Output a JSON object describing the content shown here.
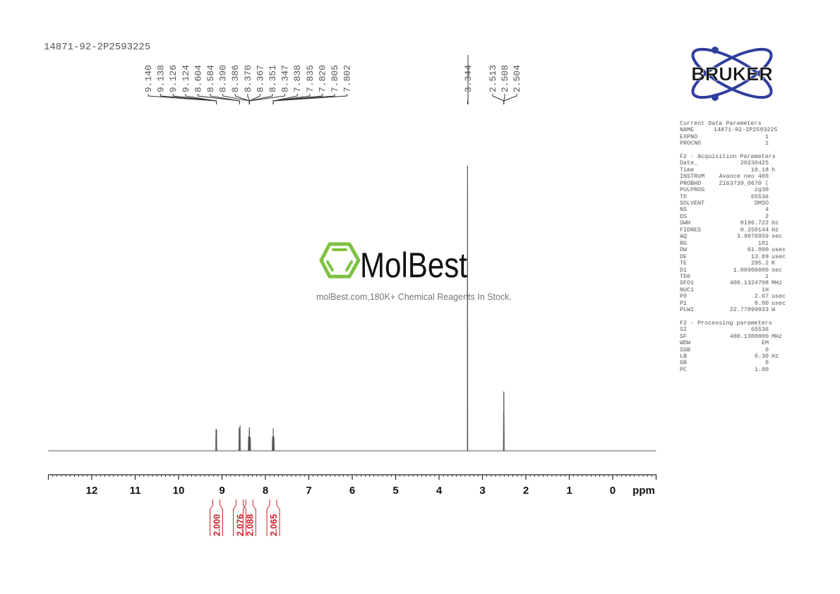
{
  "title": "14871-92-2P2593225",
  "watermark": {
    "brand": "MolBest",
    "tagline": "molBest.com,180K+ Chemical Reagents In Stock.",
    "color": "#7dc242"
  },
  "logo": {
    "brand": "BRUKER",
    "color": "#2f3f9e"
  },
  "chart_data": {
    "type": "line",
    "xlabel": "ppm",
    "xlim": [
      13,
      -1
    ],
    "x_reversed": true,
    "x_ticks": [
      "12",
      "11",
      "10",
      "9",
      "8",
      "7",
      "6",
      "5",
      "4",
      "3",
      "2",
      "1",
      "0"
    ],
    "grid": false,
    "line_color": "#555555",
    "signals": [
      {
        "ppm": 9.14,
        "intensity": 4.5
      },
      {
        "ppm": 9.138,
        "intensity": 7.7
      },
      {
        "ppm": 9.126,
        "intensity": 7.5
      },
      {
        "ppm": 9.124,
        "intensity": 4.4
      },
      {
        "ppm": 8.604,
        "intensity": 8.0
      },
      {
        "ppm": 8.584,
        "intensity": 8.9
      },
      {
        "ppm": 8.39,
        "intensity": 4.5
      },
      {
        "ppm": 8.386,
        "intensity": 5.0
      },
      {
        "ppm": 8.37,
        "intensity": 8.2
      },
      {
        "ppm": 8.367,
        "intensity": 7.0
      },
      {
        "ppm": 8.351,
        "intensity": 4.8
      },
      {
        "ppm": 8.347,
        "intensity": 4.3
      },
      {
        "ppm": 7.838,
        "intensity": 4.2
      },
      {
        "ppm": 7.835,
        "intensity": 5.0
      },
      {
        "ppm": 7.82,
        "intensity": 7.9
      },
      {
        "ppm": 7.805,
        "intensity": 5.0
      },
      {
        "ppm": 7.802,
        "intensity": 4.2
      },
      {
        "ppm": 3.344,
        "intensity": 100
      },
      {
        "ppm": 2.513,
        "intensity": 14
      },
      {
        "ppm": 2.508,
        "intensity": 20.8
      },
      {
        "ppm": 2.504,
        "intensity": 14
      }
    ],
    "peak_labels": {
      "groups": [
        {
          "labels": [
            "9.140",
            "9.138",
            "9.126",
            "9.124"
          ],
          "ppm": 9.13
        },
        {
          "labels": [
            "8.604",
            "8.584"
          ],
          "ppm": 8.594
        },
        {
          "labels": [
            "8.390",
            "8.386",
            "8.370",
            "8.367",
            "8.351",
            "8.347"
          ],
          "ppm": 8.368
        },
        {
          "labels": [
            "7.838",
            "7.835",
            "7.820",
            "7.805",
            "7.802"
          ],
          "ppm": 7.82
        },
        {
          "labels": [
            "3.344"
          ],
          "ppm": 3.344
        },
        {
          "labels": [
            "2.513",
            "2.508",
            "2.504"
          ],
          "ppm": 2.508
        }
      ]
    },
    "integrals": [
      {
        "ppm": 9.13,
        "value": "2.000"
      },
      {
        "ppm": 8.594,
        "value": "2.076"
      },
      {
        "ppm": 8.368,
        "value": "2.088"
      },
      {
        "ppm": 7.82,
        "value": "2.065"
      }
    ],
    "integral_color": "#d0202a"
  },
  "parameters": [
    {
      "heading": "Current Data Parameters",
      "rows": [
        [
          "NAME",
          "14871-92-2P2593225",
          ""
        ],
        [
          "EXPNO",
          "1",
          ""
        ],
        [
          "PROCNO",
          "1",
          ""
        ]
      ]
    },
    {
      "heading": "F2 - Acquisition Parameters",
      "rows": [
        [
          "Date_",
          "20230425",
          ""
        ],
        [
          "Time",
          "10.18",
          "h"
        ],
        [
          "INSTRUM",
          "Avance neo 400",
          ""
        ],
        [
          "PROBHD",
          "Z163739_0670 (",
          ""
        ],
        [
          "PULPROG",
          "zg30",
          ""
        ],
        [
          "TD",
          "65536",
          ""
        ],
        [
          "SOLVENT",
          "DMSO",
          ""
        ],
        [
          "NS",
          "4",
          ""
        ],
        [
          "DS",
          "2",
          ""
        ],
        [
          "SWH",
          "8196.722",
          "Hz"
        ],
        [
          "FIDRES",
          "0.250144",
          "Hz"
        ],
        [
          "AQ",
          "3.9976959",
          "sec"
        ],
        [
          "RG",
          "101",
          ""
        ],
        [
          "DW",
          "61.000",
          "usec"
        ],
        [
          "DE",
          "13.89",
          "usec"
        ],
        [
          "TE",
          "295.2",
          "K"
        ],
        [
          "D1",
          "1.00000000",
          "sec"
        ],
        [
          "TD0",
          "1",
          ""
        ],
        [
          "SFO1",
          "400.1324708",
          "MHz"
        ],
        [
          "NUC1",
          "1H",
          ""
        ],
        [
          "P0",
          "2.67",
          "usec"
        ],
        [
          "P1",
          "8.00",
          "usec"
        ],
        [
          "PLW1",
          "22.77899933",
          "W"
        ]
      ]
    },
    {
      "heading": "F2 - Processing parameters",
      "rows": [
        [
          "SI",
          "65536",
          ""
        ],
        [
          "SF",
          "400.1300000",
          "MHz"
        ],
        [
          "WDW",
          "EM",
          ""
        ],
        [
          "SSB",
          "0",
          ""
        ],
        [
          "LB",
          "0.30",
          "Hz"
        ],
        [
          "GB",
          "0",
          ""
        ],
        [
          "PC",
          "1.00",
          ""
        ]
      ]
    }
  ]
}
